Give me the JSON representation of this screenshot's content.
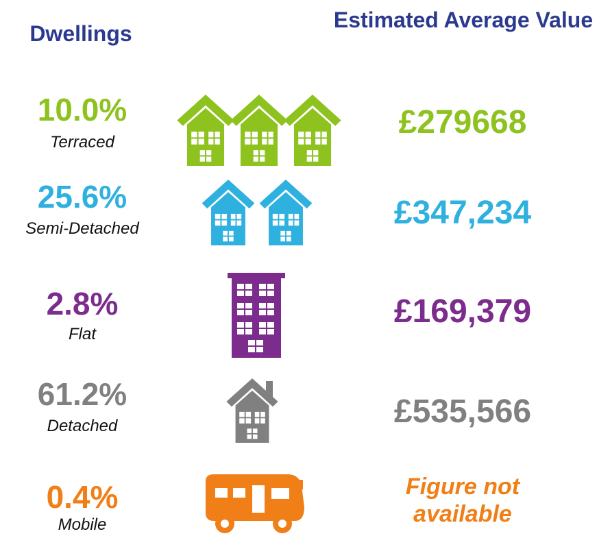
{
  "header": {
    "left": "Dwellings",
    "right": "Estimated Average Value"
  },
  "rows": [
    {
      "percent": "10.0%",
      "type": "Terraced",
      "value": "£279668"
    },
    {
      "percent": "25.6%",
      "type": "Semi-Detached",
      "value": "£347,234"
    },
    {
      "percent": "2.8%",
      "type": "Flat",
      "value": "£169,379"
    },
    {
      "percent": "61.2%",
      "type": "Detached",
      "value": "£535,566"
    },
    {
      "percent": "0.4%",
      "type": "Mobile",
      "value": "Figure not available"
    }
  ]
}
